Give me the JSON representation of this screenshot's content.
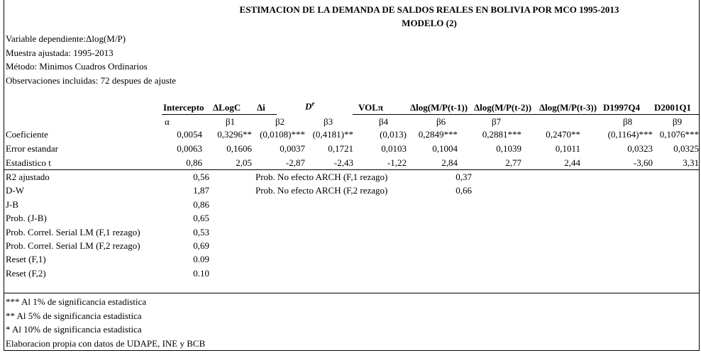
{
  "title": "ESTIMACION DE LA DEMANDA DE SALDOS REALES EN BOLIVIA POR MCO 1995-2013",
  "subtitle": "MODELO (2)",
  "info": [
    "Variable dependiente:Δlog(M/P)",
    "Muestra ajustada: 1995-2013",
    "Método: Minimos Cuadros Ordinarios",
    "Observaciones incluidas: 72 despues de ajuste"
  ],
  "table": {
    "columns": [
      {
        "header": "Intercepto",
        "symbol": "α"
      },
      {
        "header": "ΔLogC",
        "symbol": "β1"
      },
      {
        "header": "Δi",
        "symbol": "β2"
      },
      {
        "header": "D",
        "header_sup": "e",
        "symbol": "β3"
      },
      {
        "header": "VOLπ",
        "symbol": "β4"
      },
      {
        "header": "Δlog(M/P(t-1))",
        "symbol": "β6"
      },
      {
        "header": "Δlog(M/P(t-2))",
        "symbol": "β7"
      },
      {
        "header": "Δlog(M/P(t-3))"
      },
      {
        "header": "D1997Q4",
        "symbol": "β8"
      },
      {
        "header": "D2001Q1",
        "symbol": "β9"
      }
    ],
    "rows": [
      {
        "label": "Coeficiente",
        "values": [
          "0,0054",
          "0,3296**",
          "(0,0108)***",
          "(0,4181)**",
          "(0,013)",
          "0,2849***",
          "0,2881***",
          "0,2470**",
          "(0,1164)***",
          "0,1076***"
        ]
      },
      {
        "label": "Error estandar",
        "values": [
          "0,0063",
          "0,1606",
          "0,0037",
          "0,1721",
          "0,0103",
          "0,1004",
          "0,1039",
          "0,1011",
          "0,0323",
          "0,0325"
        ]
      },
      {
        "label": "Estadistico t",
        "values": [
          "0,86",
          "2,05",
          "-2,87",
          "-2,43",
          "-1,22",
          "2,84",
          "2,77",
          "2,44",
          "-3,60",
          "3,31"
        ]
      }
    ]
  },
  "stats": [
    {
      "label": "R2 ajustado",
      "value": "0,56"
    },
    {
      "label": "D-W",
      "value": "1,87"
    },
    {
      "label": "J-B",
      "value": "0,86"
    },
    {
      "label": "Prob. (J-B)",
      "value": "0,65"
    },
    {
      "label": "Prob. Correl. Serial LM (F,1 rezago)",
      "value": "0,53"
    },
    {
      "label": "Prob. Correl. Serial LM (F,2 rezago)",
      "value": "0,69"
    },
    {
      "label": "Reset (F,1)",
      "value": "0.09"
    },
    {
      "label": "Reset (F,2)",
      "value": "0.10"
    }
  ],
  "arch": [
    {
      "label": "Prob. No efecto ARCH (F,1 rezago)",
      "value": "0,37"
    },
    {
      "label": "Prob. No efecto ARCH (F,2 rezago)",
      "value": "0,66"
    }
  ],
  "notes": [
    "*** Al 1% de significancia estadistica",
    "** Al 5% de significancia estadistica",
    "* Al 10% de significancia estadistica",
    "Elaboracion propia con datos de UDAPE, INE y BCB"
  ]
}
